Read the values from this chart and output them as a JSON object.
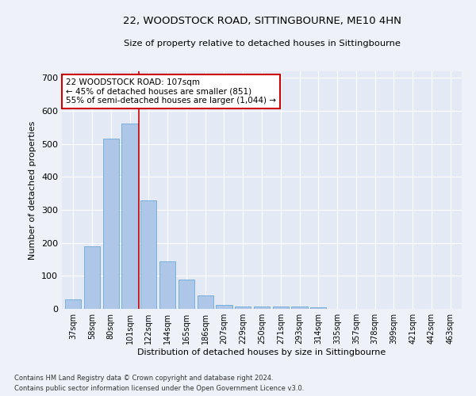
{
  "title": "22, WOODSTOCK ROAD, SITTINGBOURNE, ME10 4HN",
  "subtitle": "Size of property relative to detached houses in Sittingbourne",
  "xlabel": "Distribution of detached houses by size in Sittingbourne",
  "ylabel": "Number of detached properties",
  "footnote1": "Contains HM Land Registry data © Crown copyright and database right 2024.",
  "footnote2": "Contains public sector information licensed under the Open Government Licence v3.0.",
  "categories": [
    "37sqm",
    "58sqm",
    "80sqm",
    "101sqm",
    "122sqm",
    "144sqm",
    "165sqm",
    "186sqm",
    "207sqm",
    "229sqm",
    "250sqm",
    "271sqm",
    "293sqm",
    "314sqm",
    "335sqm",
    "357sqm",
    "378sqm",
    "399sqm",
    "421sqm",
    "442sqm",
    "463sqm"
  ],
  "values": [
    30,
    190,
    515,
    562,
    328,
    143,
    88,
    40,
    13,
    8,
    8,
    8,
    8,
    5,
    0,
    0,
    0,
    0,
    0,
    0,
    0
  ],
  "bar_color": "#aec6e8",
  "bar_edgecolor": "#6aaad4",
  "vline_x": 3.5,
  "vline_color": "#cc0000",
  "annotation_text": "22 WOODSTOCK ROAD: 107sqm\n← 45% of detached houses are smaller (851)\n55% of semi-detached houses are larger (1,044) →",
  "annotation_box_color": "#ffffff",
  "annotation_box_edgecolor": "#cc0000",
  "ylim": [
    0,
    720
  ],
  "yticks": [
    0,
    100,
    200,
    300,
    400,
    500,
    600,
    700
  ],
  "bg_color": "#eef2f8",
  "plot_bg_color": "#e4eaf5"
}
